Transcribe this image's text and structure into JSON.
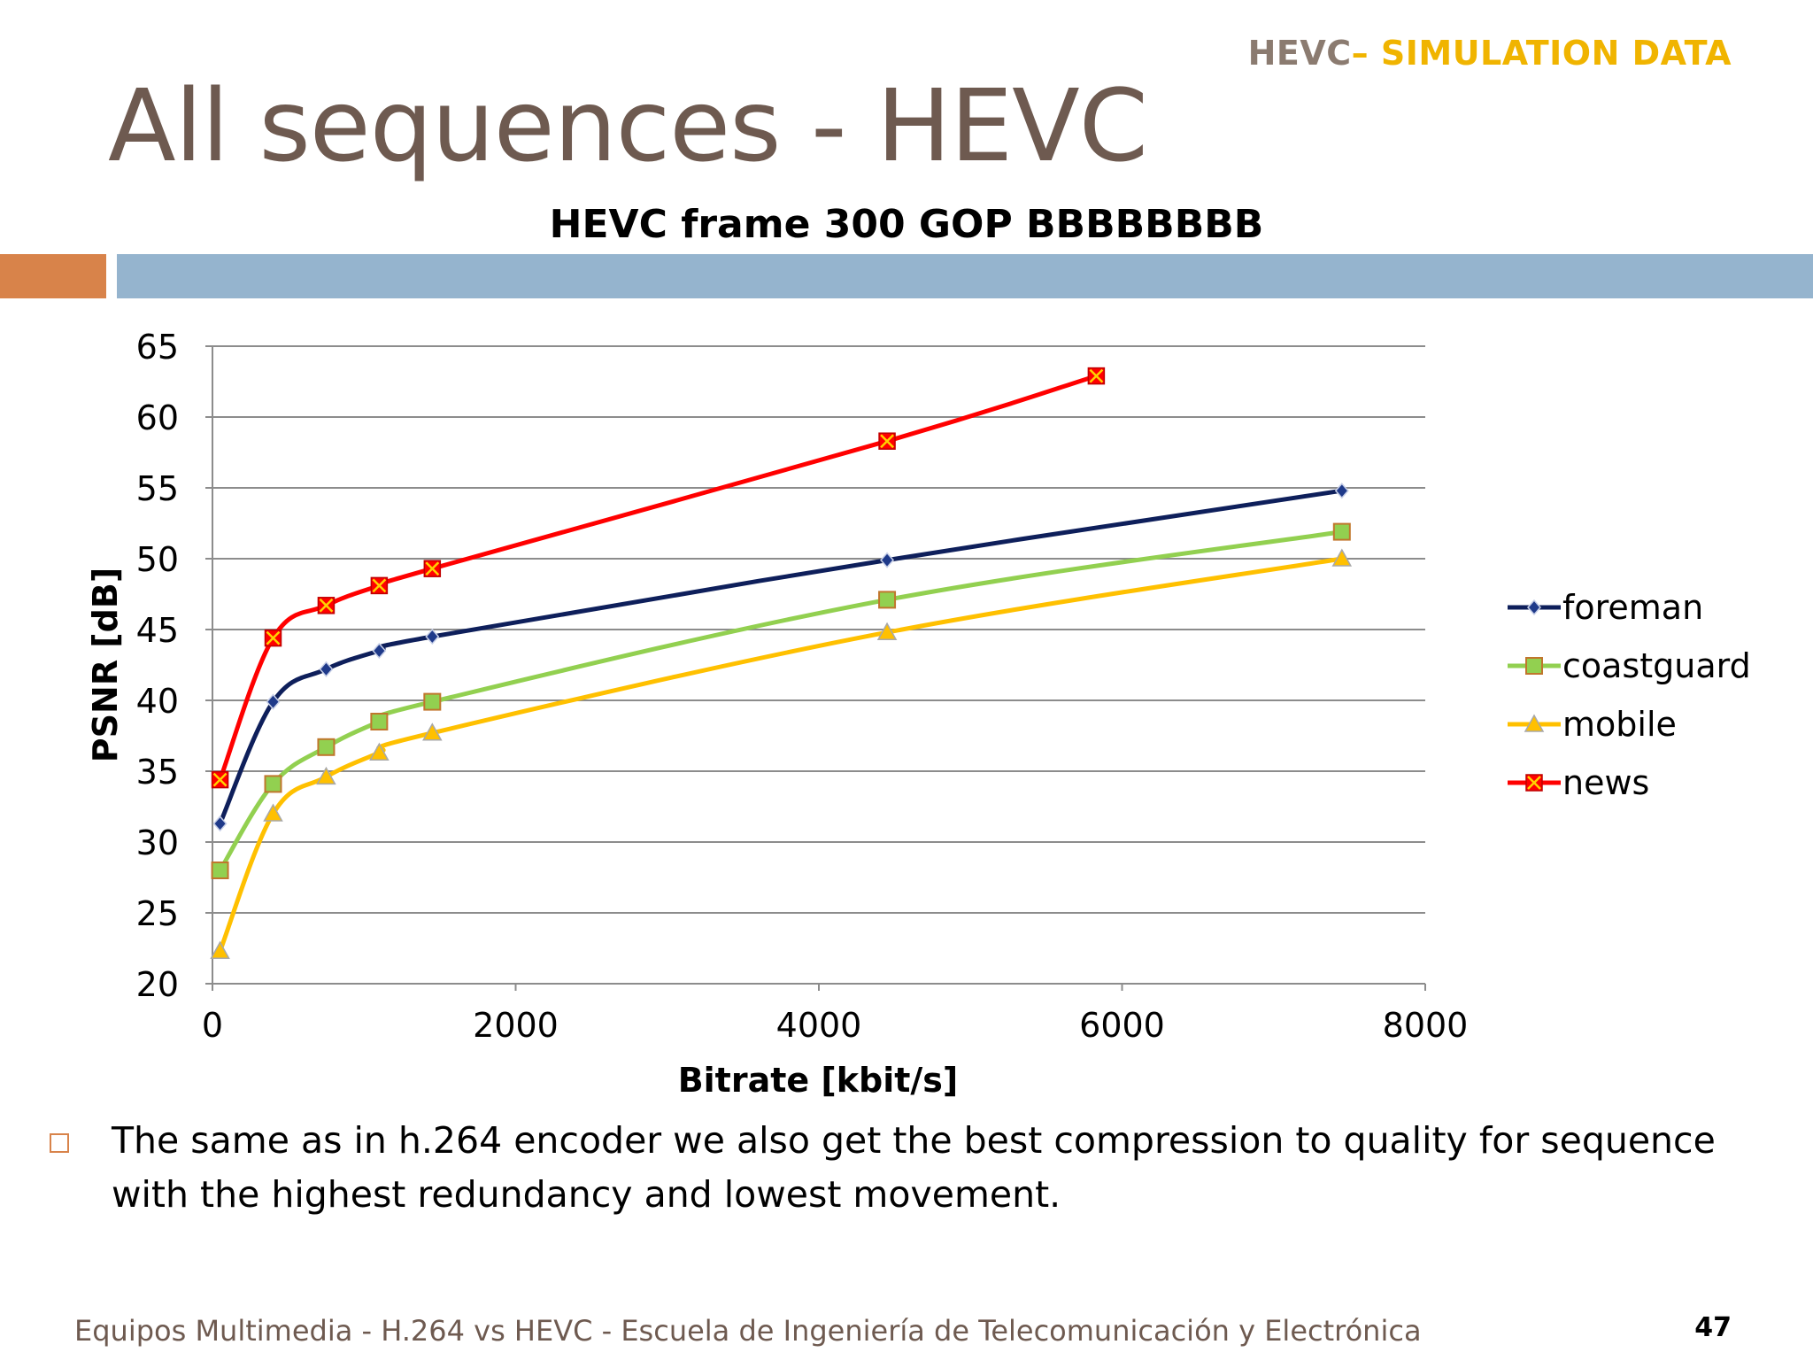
{
  "header": {
    "tag_prefix": "HEVC",
    "tag_suffix": "– SIMULATION DATA",
    "title": "All sequences - HEVC"
  },
  "chart_data": {
    "type": "line",
    "title": "HEVC frame 300 GOP BBBBBBBB",
    "xlabel": "Bitrate [kbit/s]",
    "ylabel": "PSNR [dB]",
    "xlim": [
      0,
      8000
    ],
    "ylim": [
      20,
      65
    ],
    "xticks": [
      0,
      2000,
      4000,
      6000,
      8000
    ],
    "yticks": [
      20,
      25,
      30,
      35,
      40,
      45,
      50,
      55,
      60,
      65
    ],
    "grid": "horizontal",
    "legend_position": "right",
    "series": [
      {
        "name": "foreman",
        "color": "#0e1f5b",
        "marker": "diamond",
        "points": [
          [
            50,
            31.3
          ],
          [
            400,
            39.9
          ],
          [
            750,
            42.2
          ],
          [
            1100,
            43.5
          ],
          [
            1450,
            44.5
          ],
          [
            4450,
            49.9
          ],
          [
            7450,
            54.8
          ]
        ]
      },
      {
        "name": "coastguard",
        "color": "#92d050",
        "marker": "square",
        "points": [
          [
            50,
            28.0
          ],
          [
            400,
            34.1
          ],
          [
            750,
            36.7
          ],
          [
            1100,
            38.5
          ],
          [
            1450,
            39.9
          ],
          [
            4450,
            47.1
          ],
          [
            7450,
            51.9
          ]
        ]
      },
      {
        "name": "mobile",
        "color": "#ffc000",
        "marker": "triangle",
        "points": [
          [
            50,
            22.3
          ],
          [
            400,
            32.0
          ],
          [
            750,
            34.6
          ],
          [
            1100,
            36.3
          ],
          [
            1450,
            37.7
          ],
          [
            4450,
            44.8
          ],
          [
            7450,
            50.0
          ]
        ]
      },
      {
        "name": "news",
        "color": "#ff0000",
        "marker": "x-square",
        "points": [
          [
            50,
            34.4
          ],
          [
            400,
            44.4
          ],
          [
            750,
            46.7
          ],
          [
            1100,
            48.1
          ],
          [
            1450,
            49.3
          ],
          [
            4450,
            58.3
          ],
          [
            5830,
            62.9
          ]
        ]
      }
    ]
  },
  "bullet": {
    "text": "The same as in h.264 encoder we also get the best compression to quality for sequence with the highest redundancy and lowest movement."
  },
  "footer": {
    "text": "Equipos Multimedia - H.264 vs HEVC - Escuela de Ingeniería de Telecomunicación y Electrónica",
    "page_number": "47"
  }
}
